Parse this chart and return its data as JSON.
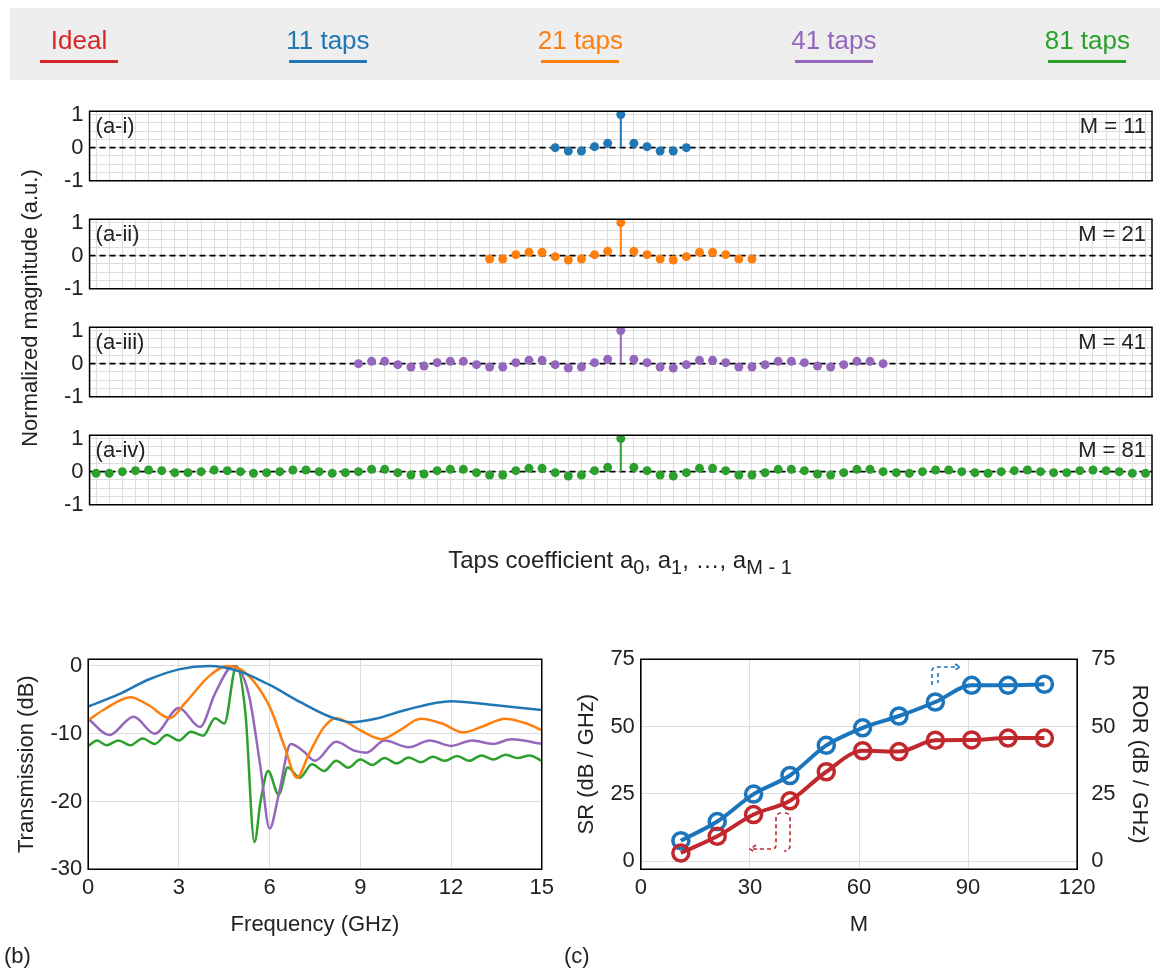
{
  "chart_data": [
    {
      "type": "lollipop",
      "annotations": [
        "(a-i)",
        "M = 11"
      ],
      "ylabel": "Normalized magnitude (a.u.)",
      "categories": [
        null,
        null,
        null,
        null,
        null,
        null,
        null,
        null,
        null,
        null,
        null,
        null,
        null,
        null,
        null,
        null,
        null,
        null,
        null,
        null,
        null,
        null,
        null,
        null,
        null,
        null,
        null,
        null,
        null,
        null,
        null,
        null,
        null,
        null,
        null,
        null,
        null,
        null,
        null,
        null,
        null,
        null,
        null,
        null,
        null,
        null,
        null,
        null,
        null,
        null,
        null,
        null,
        null,
        null,
        null,
        null,
        null,
        null,
        null,
        null,
        null,
        null,
        null,
        null,
        null,
        null,
        null,
        null,
        null,
        null,
        null,
        null,
        null,
        null,
        null,
        null,
        null,
        null,
        null,
        null,
        null
      ],
      "series": [
        {
          "color": "#1f77b4",
          "values": [
            null,
            null,
            null,
            null,
            null,
            null,
            null,
            null,
            null,
            null,
            null,
            null,
            null,
            null,
            null,
            null,
            null,
            null,
            null,
            null,
            null,
            null,
            null,
            null,
            null,
            null,
            null,
            null,
            null,
            null,
            null,
            null,
            null,
            null,
            null,
            0,
            -0.1,
            -0.1,
            0.03,
            0.13,
            1,
            0.13,
            0.03,
            -0.1,
            -0.1,
            0,
            null,
            null,
            null,
            null,
            null,
            null,
            null,
            null,
            null,
            null,
            null,
            null,
            null,
            null,
            null,
            null,
            null,
            null,
            null,
            null,
            null,
            null,
            null,
            null,
            null,
            null,
            null,
            null,
            null,
            null,
            null,
            null,
            null,
            null,
            null
          ]
        }
      ],
      "ylim": [
        -1,
        1.1
      ],
      "yticks": [
        -1,
        {
          "value": -0.75,
          "label": null
        },
        {
          "value": -0.5,
          "label": null
        },
        {
          "value": -0.25,
          "label": null
        },
        0,
        {
          "value": 0.25,
          "label": null
        },
        {
          "value": 0.5,
          "label": null
        },
        {
          "value": 0.75,
          "label": null
        },
        1
      ],
      "grid": true,
      "marker": "circle",
      "ref_lines": [
        {
          "axis": "y",
          "value": 0,
          "line_style": "dashed",
          "color": "#000000"
        }
      ]
    },
    {
      "type": "lollipop",
      "annotations": [
        "(a-ii)",
        "M = 21"
      ],
      "categories": [
        null,
        null,
        null,
        null,
        null,
        null,
        null,
        null,
        null,
        null,
        null,
        null,
        null,
        null,
        null,
        null,
        null,
        null,
        null,
        null,
        null,
        null,
        null,
        null,
        null,
        null,
        null,
        null,
        null,
        null,
        null,
        null,
        null,
        null,
        null,
        null,
        null,
        null,
        null,
        null,
        null,
        null,
        null,
        null,
        null,
        null,
        null,
        null,
        null,
        null,
        null,
        null,
        null,
        null,
        null,
        null,
        null,
        null,
        null,
        null,
        null,
        null,
        null,
        null,
        null,
        null,
        null,
        null,
        null,
        null,
        null,
        null,
        null,
        null,
        null,
        null,
        null,
        null,
        null,
        null,
        null
      ],
      "series": [
        {
          "color": "#ff7f0e",
          "values": [
            null,
            null,
            null,
            null,
            null,
            null,
            null,
            null,
            null,
            null,
            null,
            null,
            null,
            null,
            null,
            null,
            null,
            null,
            null,
            null,
            null,
            null,
            null,
            null,
            null,
            null,
            null,
            null,
            null,
            null,
            -0.1,
            -0.1,
            0.03,
            0.1,
            0.1,
            -0.03,
            -0.13,
            -0.1,
            0.03,
            0.13,
            1,
            0.13,
            0.03,
            -0.1,
            -0.13,
            -0.03,
            0.1,
            0.1,
            0.03,
            -0.1,
            -0.1,
            null,
            null,
            null,
            null,
            null,
            null,
            null,
            null,
            null,
            null,
            null,
            null,
            null,
            null,
            null,
            null,
            null,
            null,
            null,
            null,
            null,
            null,
            null,
            null,
            null,
            null,
            null,
            null,
            null,
            null
          ]
        }
      ],
      "ylim": [
        -1,
        1.1
      ],
      "yticks": [
        -1,
        {
          "value": -0.75,
          "label": null
        },
        {
          "value": -0.5,
          "label": null
        },
        {
          "value": -0.25,
          "label": null
        },
        0,
        {
          "value": 0.25,
          "label": null
        },
        {
          "value": 0.5,
          "label": null
        },
        {
          "value": 0.75,
          "label": null
        },
        1
      ],
      "grid": true,
      "marker": "circle",
      "ref_lines": [
        {
          "axis": "y",
          "value": 0,
          "line_style": "dashed",
          "color": "#000000"
        }
      ]
    },
    {
      "type": "lollipop",
      "annotations": [
        "(a-iii)",
        "M = 41"
      ],
      "categories": [
        null,
        null,
        null,
        null,
        null,
        null,
        null,
        null,
        null,
        null,
        null,
        null,
        null,
        null,
        null,
        null,
        null,
        null,
        null,
        null,
        null,
        null,
        null,
        null,
        null,
        null,
        null,
        null,
        null,
        null,
        null,
        null,
        null,
        null,
        null,
        null,
        null,
        null,
        null,
        null,
        null,
        null,
        null,
        null,
        null,
        null,
        null,
        null,
        null,
        null,
        null,
        null,
        null,
        null,
        null,
        null,
        null,
        null,
        null,
        null,
        null,
        null,
        null,
        null,
        null,
        null,
        null,
        null,
        null,
        null,
        null,
        null,
        null,
        null,
        null,
        null,
        null,
        null,
        null,
        null,
        null
      ],
      "series": [
        {
          "color": "#9467bd",
          "values": [
            null,
            null,
            null,
            null,
            null,
            null,
            null,
            null,
            null,
            null,
            null,
            null,
            null,
            null,
            null,
            null,
            null,
            null,
            null,
            null,
            0,
            0.07,
            0.07,
            -0.03,
            -0.1,
            -0.07,
            0.03,
            0.07,
            0.07,
            -0.03,
            -0.1,
            -0.1,
            0.03,
            0.1,
            0.1,
            -0.03,
            -0.13,
            -0.1,
            0.03,
            0.13,
            1,
            0.13,
            0.03,
            -0.1,
            -0.13,
            -0.03,
            0.1,
            0.1,
            0.03,
            -0.1,
            -0.1,
            -0.03,
            0.07,
            0.07,
            0.03,
            -0.07,
            -0.1,
            -0.03,
            0.07,
            0.07,
            0,
            null,
            null,
            null,
            null,
            null,
            null,
            null,
            null,
            null,
            null,
            null,
            null,
            null,
            null,
            null,
            null,
            null,
            null,
            null,
            null
          ]
        }
      ],
      "ylim": [
        -1,
        1.1
      ],
      "yticks": [
        -1,
        {
          "value": -0.75,
          "label": null
        },
        {
          "value": -0.5,
          "label": null
        },
        {
          "value": -0.25,
          "label": null
        },
        0,
        {
          "value": 0.25,
          "label": null
        },
        {
          "value": 0.5,
          "label": null
        },
        {
          "value": 0.75,
          "label": null
        },
        1
      ],
      "grid": true,
      "marker": "circle",
      "ref_lines": [
        {
          "axis": "y",
          "value": 0,
          "line_style": "dashed",
          "color": "#000000"
        }
      ]
    },
    {
      "type": "lollipop",
      "annotations": [
        "(a-iv)",
        "M = 81"
      ],
      "xlabel": "Taps coefficient a$_{0}$, a$_{1}$, …, a$_{M - 1}$",
      "categories": [
        null,
        null,
        null,
        null,
        null,
        null,
        null,
        null,
        null,
        null,
        null,
        null,
        null,
        null,
        null,
        null,
        null,
        null,
        null,
        null,
        null,
        null,
        null,
        null,
        null,
        null,
        null,
        null,
        null,
        null,
        null,
        null,
        null,
        null,
        null,
        null,
        null,
        null,
        null,
        null,
        null,
        null,
        null,
        null,
        null,
        null,
        null,
        null,
        null,
        null,
        null,
        null,
        null,
        null,
        null,
        null,
        null,
        null,
        null,
        null,
        null,
        null,
        null,
        null,
        null,
        null,
        null,
        null,
        null,
        null,
        null,
        null,
        null,
        null,
        null,
        null,
        null,
        null,
        null,
        null,
        null
      ],
      "series": [
        {
          "color": "#2ca02c",
          "values": [
            -0.05,
            -0.05,
            0,
            0.03,
            0.05,
            0.03,
            -0.03,
            -0.03,
            0,
            0.05,
            0.03,
            0,
            -0.05,
            -0.03,
            0,
            0.05,
            0.05,
            0,
            -0.05,
            -0.03,
            0,
            0.07,
            0.07,
            -0.03,
            -0.1,
            -0.07,
            0.03,
            0.07,
            0.07,
            -0.03,
            -0.1,
            -0.1,
            0.03,
            0.1,
            0.1,
            -0.03,
            -0.13,
            -0.1,
            0.03,
            0.13,
            1,
            0.13,
            0.03,
            -0.1,
            -0.13,
            -0.03,
            0.1,
            0.1,
            0.03,
            -0.1,
            -0.1,
            -0.03,
            0.07,
            0.07,
            0.03,
            -0.07,
            -0.1,
            -0.03,
            0.07,
            0.07,
            0,
            -0.03,
            -0.05,
            0,
            0.05,
            0.05,
            0,
            -0.03,
            -0.05,
            0,
            0.03,
            0.05,
            0,
            -0.03,
            -0.03,
            0.03,
            0.05,
            0.03,
            0,
            -0.05,
            -0.05
          ]
        }
      ],
      "ylim": [
        -1,
        1.1
      ],
      "yticks": [
        -1,
        {
          "value": -0.75,
          "label": null
        },
        {
          "value": -0.5,
          "label": null
        },
        {
          "value": -0.25,
          "label": null
        },
        0,
        {
          "value": 0.25,
          "label": null
        },
        {
          "value": 0.5,
          "label": null
        },
        {
          "value": 0.75,
          "label": null
        },
        1
      ],
      "grid": true,
      "marker": "circle",
      "ref_lines": [
        {
          "axis": "y",
          "value": 0,
          "line_style": "dashed",
          "color": "#000000"
        }
      ]
    },
    {
      "type": "line",
      "annotations": [
        "(b)"
      ],
      "xlabel": "Frequency (GHz)",
      "ylabel": "Transmission (dB)",
      "legend": "top",
      "grid": true,
      "xlim": [
        0,
        15
      ],
      "xticks": [
        0,
        3,
        6,
        9,
        12,
        15
      ],
      "ylim": [
        -30,
        1
      ],
      "yticks": [
        -30,
        -20,
        -10,
        0
      ],
      "series": [
        {
          "name": "Ideal",
          "color": "#d62728"
        },
        {
          "name": "11 taps",
          "color": "#1f77b4",
          "x": [
            0,
            1,
            2,
            3,
            4,
            5,
            6,
            7,
            8,
            8.7,
            9.5,
            10.5,
            12,
            13.5,
            15
          ],
          "values": [
            -6,
            -4.2,
            -2,
            -0.5,
            0,
            -0.8,
            -2.8,
            -5.3,
            -7.5,
            -8.3,
            -7.8,
            -6.5,
            -5.2,
            -5.8,
            -6.5
          ]
        },
        {
          "name": "21 taps",
          "color": "#ff7f0e",
          "x": [
            0,
            0.5,
            1.4,
            2,
            2.7,
            3.2,
            4,
            4.6,
            5.2,
            6,
            6.5,
            6.9,
            7.3,
            7.8,
            8.2,
            9,
            9.7,
            10.3,
            11,
            11.7,
            12.4,
            13,
            13.8,
            14.5,
            15
          ],
          "values": [
            -8,
            -6.5,
            -4.6,
            -5.8,
            -7.7,
            -5.5,
            -1.5,
            0,
            -1,
            -6,
            -12,
            -16.5,
            -13,
            -9,
            -7.7,
            -9.5,
            -10.8,
            -9.5,
            -7.8,
            -8.5,
            -9.8,
            -9,
            -7.8,
            -8.5,
            -9.5
          ]
        },
        {
          "name": "41 taps",
          "color": "#9467bd",
          "x": [
            0,
            0.7,
            1.5,
            2.2,
            3,
            3.7,
            4.2,
            4.8,
            5.3,
            5.7,
            6,
            6.3,
            6.7,
            7.1,
            7.5,
            8.2,
            8.8,
            9.2,
            9.8,
            10.6,
            11.3,
            12,
            12.7,
            13.4,
            14,
            15
          ],
          "values": [
            -7.8,
            -10.2,
            -7.5,
            -10,
            -6.2,
            -9,
            -4,
            0,
            -4,
            -15,
            -24,
            -19,
            -11.5,
            -12.5,
            -14,
            -11.2,
            -12.5,
            -12.8,
            -11,
            -12,
            -11,
            -11.8,
            -11,
            -11.5,
            -10.8,
            -11.5
          ]
        },
        {
          "name": "81 taps",
          "color": "#2ca02c",
          "x": [
            0,
            0.3,
            0.6,
            1,
            1.4,
            1.8,
            2.2,
            2.6,
            3,
            3.4,
            3.8,
            4.2,
            4.5,
            4.9,
            5.2,
            5.5,
            5.7,
            5.95,
            6.3,
            6.6,
            7,
            7.4,
            7.8,
            8.2,
            8.6,
            9,
            9.4,
            9.8,
            10.2,
            10.6,
            11,
            11.4,
            11.8,
            12.2,
            12.6,
            13,
            13.4,
            13.8,
            14.2,
            14.6,
            15
          ],
          "values": [
            -11.8,
            -11,
            -11.7,
            -11,
            -11.7,
            -10.7,
            -11.5,
            -10.2,
            -11,
            -9.7,
            -10.3,
            -7.7,
            -8.5,
            0,
            -7,
            -26,
            -20,
            -15.5,
            -19,
            -15,
            -16.5,
            -14.5,
            -15.5,
            -14,
            -15,
            -13.8,
            -14.6,
            -13.6,
            -14.4,
            -13.5,
            -14.2,
            -13.4,
            -14,
            -13.3,
            -14,
            -13.2,
            -13.8,
            -13.1,
            -13.6,
            -13.2,
            -14
          ]
        }
      ]
    },
    {
      "type": "line",
      "annotations": [
        "(c)"
      ],
      "xlabel": "M",
      "ylabel": "SR (dB / GHz)",
      "y2label": "ROR (dB / GHz)",
      "grid": true,
      "marker": "circle",
      "xlim": [
        0,
        120
      ],
      "xticks": [
        0,
        30,
        60,
        90,
        120
      ],
      "ylim": [
        -3,
        75
      ],
      "yticks": [
        0,
        25,
        50,
        75
      ],
      "y2lim": [
        -3,
        75
      ],
      "y2ticks": [
        0,
        25,
        50,
        75
      ],
      "series": [
        {
          "color": "#c0282e",
          "x": [
            11,
            21,
            31,
            41,
            51,
            61,
            71,
            81,
            91,
            101,
            111
          ],
          "values": [
            3,
            9.2,
            17.3,
            22.4,
            33.2,
            41,
            40.7,
            44.9,
            45,
            45.7,
            45.7
          ]
        },
        {
          "color": "#1b75bc",
          "axis": "y2",
          "x": [
            11,
            21,
            31,
            41,
            51,
            61,
            71,
            81,
            91,
            101,
            111
          ],
          "values": [
            7.6,
            14.7,
            24.9,
            31.8,
            43,
            49.5,
            53.9,
            59.1,
            65.3,
            65.3,
            65.7
          ]
        }
      ]
    }
  ]
}
